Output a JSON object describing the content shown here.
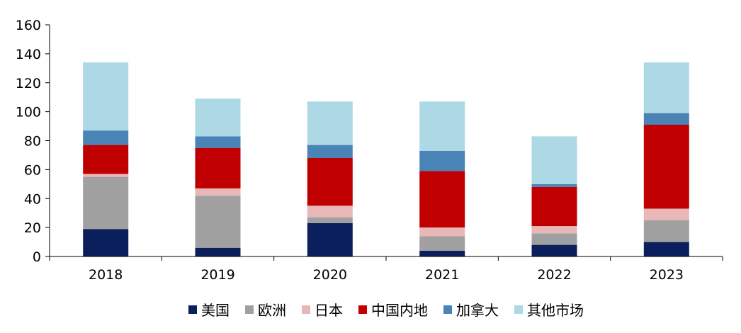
{
  "chart_data": {
    "type": "bar",
    "stacked": true,
    "categories": [
      "2018",
      "2019",
      "2020",
      "2021",
      "2022",
      "2023"
    ],
    "ylim": [
      0,
      160
    ],
    "yticks": [
      0,
      20,
      40,
      60,
      80,
      100,
      120,
      140,
      160
    ],
    "grid": false,
    "legend_position": "bottom",
    "series": [
      {
        "name": "美国",
        "color": "#0b1f5c",
        "values": [
          19,
          6,
          23,
          4,
          8,
          10
        ]
      },
      {
        "name": "欧洲",
        "color": "#a0a0a0",
        "values": [
          36,
          36,
          4,
          10,
          8,
          15
        ]
      },
      {
        "name": "日本",
        "color": "#e8b8b8",
        "values": [
          2,
          5,
          8,
          6,
          5,
          8
        ]
      },
      {
        "name": "中国内地",
        "color": "#c00000",
        "values": [
          20,
          28,
          33,
          39,
          27,
          58
        ]
      },
      {
        "name": "加拿大",
        "color": "#4a83b5",
        "values": [
          10,
          8,
          9,
          14,
          2,
          8
        ]
      },
      {
        "name": "其他市场",
        "color": "#add8e6",
        "values": [
          47,
          26,
          30,
          34,
          33,
          35
        ]
      }
    ]
  }
}
